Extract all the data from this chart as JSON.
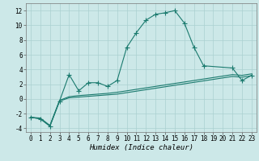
{
  "xlabel": "Humidex (Indice chaleur)",
  "ylabel": "",
  "background_color": "#cce8e8",
  "grid_color": "#aad0d0",
  "line_color": "#1a7a6e",
  "x_values": [
    0,
    1,
    2,
    3,
    4,
    5,
    6,
    7,
    8,
    9,
    10,
    11,
    12,
    13,
    14,
    15,
    16,
    17,
    18,
    19,
    20,
    21,
    22,
    23
  ],
  "series1": [
    -2.5,
    -2.7,
    -3.7,
    -0.3,
    3.3,
    1.1,
    2.2,
    2.2,
    1.7,
    2.5,
    7.0,
    9.0,
    10.7,
    11.5,
    11.7,
    12.0,
    10.3,
    7.0,
    4.5,
    null,
    null,
    4.2,
    2.5,
    3.2
  ],
  "series2": [
    -2.5,
    -2.7,
    -3.7,
    -0.3,
    0.15,
    0.25,
    0.35,
    0.45,
    0.55,
    0.65,
    0.85,
    1.05,
    1.25,
    1.45,
    1.65,
    1.85,
    2.05,
    2.25,
    2.45,
    2.65,
    2.85,
    3.05,
    2.95,
    3.15
  ],
  "series3": [
    -2.5,
    -2.6,
    -3.6,
    -0.2,
    0.3,
    0.45,
    0.55,
    0.65,
    0.75,
    0.9,
    1.1,
    1.3,
    1.5,
    1.7,
    1.9,
    2.1,
    2.3,
    2.5,
    2.7,
    2.9,
    3.1,
    3.3,
    3.2,
    3.4
  ],
  "ylim": [
    -4.5,
    13.0
  ],
  "xlim": [
    -0.5,
    23.5
  ],
  "xticks": [
    0,
    1,
    2,
    3,
    4,
    5,
    6,
    7,
    8,
    9,
    10,
    11,
    12,
    13,
    14,
    15,
    16,
    17,
    18,
    19,
    20,
    21,
    22,
    23
  ],
  "yticks": [
    -4,
    -2,
    0,
    2,
    4,
    6,
    8,
    10,
    12
  ],
  "marker_size": 3,
  "line_width": 0.8,
  "font_size_label": 6.5,
  "font_size_tick": 5.5
}
